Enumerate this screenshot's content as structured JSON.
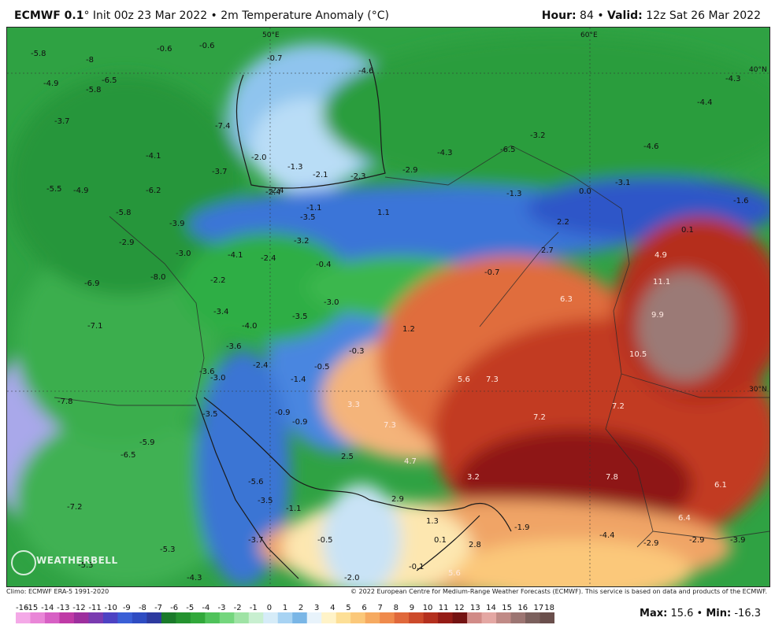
{
  "header": {
    "model": "ECMWF 0.1",
    "init": "° Init 00z 23 Mar 2022 • 2m Temperature Anomaly (°C)",
    "hour_label": "Hour:",
    "hour_value": "84",
    "valid_label": "Valid:",
    "valid_value": "12z Sat 26 Mar 2022"
  },
  "map": {
    "gridlines": {
      "lon": [
        "50°E",
        "60°E"
      ],
      "lat": [
        "40°N",
        "30°N"
      ]
    },
    "anomaly_values": [
      "-5.8",
      "-0.6",
      "-0.6",
      "-0.7",
      "-4.9",
      "-8",
      "-6.5",
      "-3.7",
      "-5.8",
      "-7.4",
      "-4.6",
      "-4.3",
      "-4.4",
      "-4.1",
      "-2.0",
      "-2.4",
      "-1.3",
      "-2.1",
      "-2.3",
      "-2.9",
      "-4.3",
      "-6.5",
      "-3.2",
      "-4.6",
      "-5.5",
      "-4.9",
      "-3.7",
      "-6.2",
      "-2.4",
      "-1.3",
      "0.0",
      "-3.1",
      "-1.6",
      "-5.8",
      "-3.9",
      "-1.1",
      "-3.5",
      "1.1",
      "2.2",
      "0.1",
      "-2.9",
      "-3.0",
      "-4.1",
      "-2.4",
      "-3.2",
      "-0.4",
      "2.7",
      "4.9",
      "-8.0",
      "-2.2",
      "-0.7",
      "6.3",
      "11.1",
      "-6.9",
      "-3.4",
      "-3.0",
      "-3.5",
      "-4.0",
      "1.2",
      "9.9",
      "-7.1",
      "-3.6",
      "-0.3",
      "10.5",
      "-3.6",
      "-2.4",
      "-0.5",
      "5.6",
      "7.3",
      "-3.0",
      "-1.4",
      "-7.8",
      "-3.5",
      "-0.9",
      "3.3",
      "7.2",
      "7.2",
      "-0.9",
      "7.3",
      "-5.9",
      "-6.5",
      "2.5",
      "4.7",
      "-5.6",
      "3.2",
      "7.8",
      "6.1",
      "-7.2",
      "-3.5",
      "-1.1",
      "2.9",
      "1.3",
      "-1.9",
      "6.4",
      "-3.7",
      "-0.5",
      "0.1",
      "2.8",
      "-4.4",
      "-2.9",
      "-2.9",
      "-3.9",
      "-5.3",
      "-5.3",
      "-4.3",
      "-2.0",
      "-0.1",
      "5.6"
    ],
    "logo_text": "WEATHERBELL"
  },
  "colors": {
    "legend": [
      "#f4a9e7",
      "#e986d7",
      "#d760c4",
      "#bf3aa6",
      "#9d2f9e",
      "#7a3bb0",
      "#4d42c3",
      "#3a5fd6",
      "#2f4cc2",
      "#2d3a9f",
      "#1a7a2a",
      "#24922f",
      "#31a83a",
      "#4fc25a",
      "#74d67d",
      "#9fe3a5",
      "#c8efd0",
      "#d6ecf8",
      "#a8d3f3",
      "#7ab6e6",
      "#e8f3fb",
      "#fff3c8",
      "#fddf96",
      "#fbc87a",
      "#f6aa61",
      "#ef8a4c",
      "#e0683b",
      "#cc4a2a",
      "#b4301e",
      "#951c16",
      "#741312",
      "#d18b87",
      "#e4a7a3",
      "#c08a86",
      "#9c7572",
      "#7b605d",
      "#6a4f4c"
    ]
  },
  "legend": {
    "ticks": [
      "-16",
      "-15",
      "-14",
      "-13",
      "-12",
      "-11",
      "-10",
      "-9",
      "-8",
      "-7",
      "-6",
      "-5",
      "-4",
      "-3",
      "-2",
      "-1",
      "0",
      "1",
      "2",
      "3",
      "4",
      "5",
      "6",
      "7",
      "8",
      "9",
      "10",
      "11",
      "12",
      "13",
      "14",
      "15",
      "16",
      "17",
      "18"
    ]
  },
  "footer": {
    "climo": "Climo: ECMWF ERA-5 1991-2020",
    "copyright": "© 2022 European Centre for Medium-Range Weather Forecasts (ECMWF). This service is based on data and products of the ECMWF.",
    "max_label": "Max:",
    "max_value": "15.6",
    "min_label": "Min:",
    "min_value": "-16.3"
  }
}
